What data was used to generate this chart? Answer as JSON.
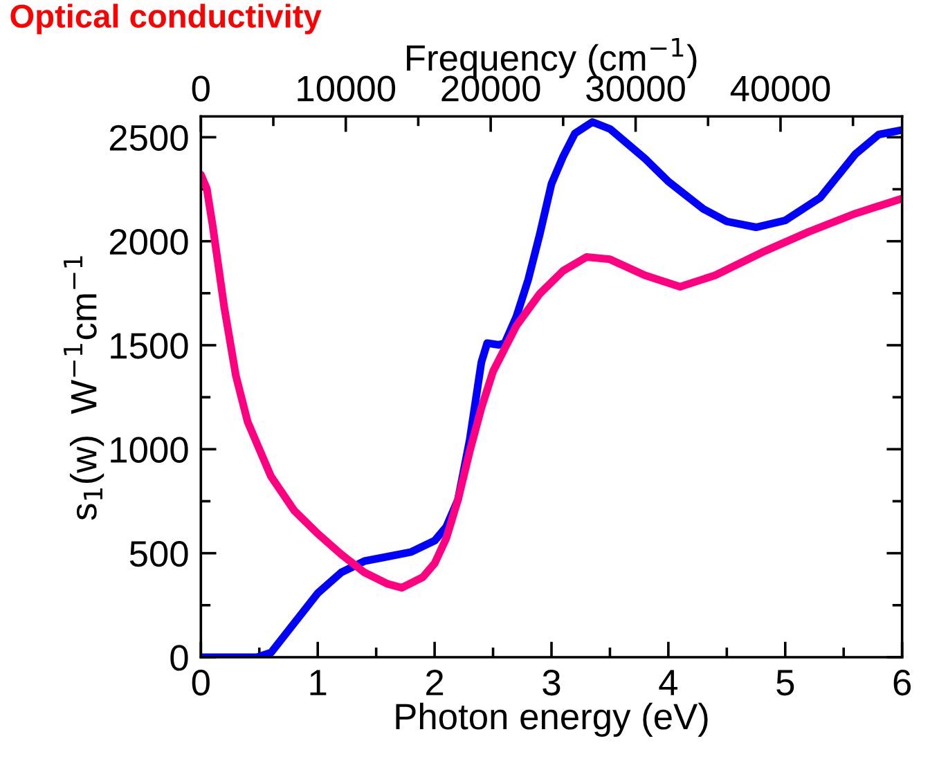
{
  "chart_data": {
    "type": "line",
    "title": "Optical conductivity",
    "xlabel": "Photon energy (eV)",
    "ylabel": "s$_{1}$(w)  W$^{−1}$cm$^{−1}$",
    "x2label": "Frequency (cm$^{−1}$)",
    "xlim": [
      0,
      6
    ],
    "ylim": [
      0,
      2600
    ],
    "x2lim": [
      0,
      48390
    ],
    "xticks": [
      0,
      {
        "value": 0.5,
        "label": null
      },
      1,
      {
        "value": 1.5,
        "label": null
      },
      2,
      {
        "value": 2.5,
        "label": null
      },
      3,
      {
        "value": 3.5,
        "label": null
      },
      4,
      {
        "value": 4.5,
        "label": null
      },
      5,
      {
        "value": 5.5,
        "label": null
      },
      6
    ],
    "yticks": [
      0,
      {
        "value": 250,
        "label": null
      },
      500,
      {
        "value": 750,
        "label": null
      },
      1000,
      {
        "value": 1250,
        "label": null
      },
      1500,
      {
        "value": 1750,
        "label": null
      },
      2000,
      {
        "value": 2250,
        "label": null
      },
      2500
    ],
    "x2ticks": [
      0,
      {
        "value": 5000,
        "label": null
      },
      10000,
      {
        "value": 15000,
        "label": null
      },
      20000,
      {
        "value": 25000,
        "label": null
      },
      30000,
      {
        "value": 35000,
        "label": null
      },
      40000,
      {
        "value": 45000,
        "label": null
      }
    ],
    "grid": false,
    "marker": "none",
    "line_style": "solid",
    "series": [
      {
        "color": "#0000ff",
        "x": [
          0,
          0.48,
          0.6,
          0.8,
          1.0,
          1.2,
          1.4,
          1.6,
          1.8,
          2.0,
          2.1,
          2.2,
          2.3,
          2.4,
          2.45,
          2.55,
          2.6,
          2.7,
          2.8,
          2.9,
          3.0,
          3.1,
          3.2,
          3.35,
          3.5,
          3.8,
          4.0,
          4.3,
          4.5,
          4.75,
          5.0,
          5.3,
          5.6,
          5.8,
          6.0
        ],
        "values": [
          0,
          0,
          22,
          165,
          308,
          407,
          462,
          484,
          506,
          560,
          627,
          758,
          1044,
          1418,
          1510,
          1502,
          1510,
          1638,
          1814,
          2034,
          2276,
          2408,
          2518,
          2573,
          2540,
          2397,
          2287,
          2155,
          2095,
          2067,
          2100,
          2210,
          2419,
          2513,
          2535
        ]
      },
      {
        "color": "#ff0080",
        "x": [
          0,
          0.05,
          0.1,
          0.2,
          0.3,
          0.4,
          0.6,
          0.8,
          1.0,
          1.2,
          1.4,
          1.6,
          1.72,
          1.9,
          2.0,
          2.1,
          2.2,
          2.3,
          2.4,
          2.5,
          2.6,
          2.7,
          2.9,
          3.1,
          3.3,
          3.5,
          3.8,
          4.1,
          4.4,
          4.8,
          5.2,
          5.6,
          6.0
        ],
        "values": [
          2320,
          2254,
          2078,
          1682,
          1352,
          1132,
          869,
          704,
          594,
          495,
          407,
          352,
          334,
          385,
          451,
          572,
          758,
          989,
          1198,
          1374,
          1484,
          1594,
          1748,
          1858,
          1924,
          1913,
          1836,
          1781,
          1836,
          1946,
          2045,
          2133,
          2205
        ]
      }
    ]
  }
}
